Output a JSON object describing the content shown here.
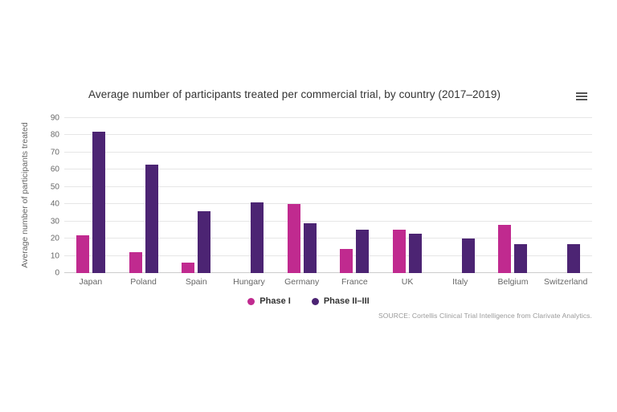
{
  "chart_data": {
    "type": "bar",
    "title": "Average number of participants treated per commercial trial, by country (2017–2019)",
    "categories": [
      "Japan",
      "Poland",
      "Spain",
      "Hungary",
      "Germany",
      "France",
      "UK",
      "Italy",
      "Belgium",
      "Switzerland"
    ],
    "series": [
      {
        "name": "Phase I",
        "color": "#c02a8f",
        "values": [
          22,
          12,
          6,
          null,
          40,
          14,
          25,
          null,
          28,
          null
        ]
      },
      {
        "name": "Phase II–III",
        "color": "#4c2473",
        "values": [
          82,
          63,
          36,
          41,
          29,
          25,
          23,
          20,
          17,
          17
        ]
      }
    ],
    "xlabel": "",
    "ylabel": "Average number of participants treated",
    "ylim": [
      0,
      90
    ],
    "y_ticks": [
      0,
      10,
      20,
      30,
      40,
      50,
      60,
      70,
      80,
      90
    ],
    "grid": true,
    "legend_position": "bottom",
    "source": "SOURCE: Cortellis Clinical Trial Intelligence from Clarivate Analytics."
  },
  "icons": {
    "context_menu": "hamburger-icon"
  },
  "colors": {
    "background": "#ffffff",
    "phase1": "#c02a8f",
    "phase2_3": "#4c2473",
    "grid": "#e6e6e6",
    "axis_line": "#cccccc",
    "title_text": "#333333",
    "tick_text": "#666666",
    "source_text": "#999999"
  }
}
